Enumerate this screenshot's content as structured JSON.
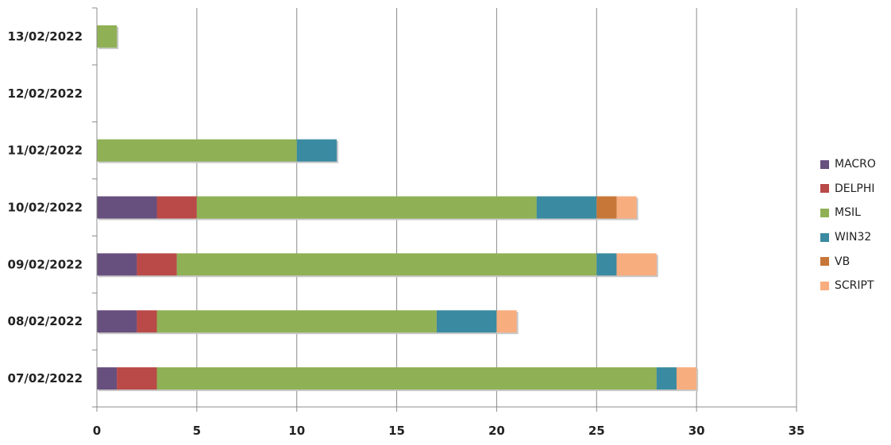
{
  "chart_data": {
    "type": "bar",
    "orientation": "horizontal",
    "stacked": true,
    "categories": [
      "07/02/2022",
      "08/02/2022",
      "09/02/2022",
      "10/02/2022",
      "11/02/2022",
      "12/02/2022",
      "13/02/2022"
    ],
    "series": [
      {
        "name": "MACRO",
        "color": "#674f7e",
        "values": [
          1,
          2,
          2,
          3,
          0,
          0,
          0
        ]
      },
      {
        "name": "DELPHI",
        "color": "#b94a48",
        "values": [
          2,
          1,
          2,
          2,
          0,
          0,
          0
        ]
      },
      {
        "name": "MSIL",
        "color": "#8fb055",
        "values": [
          25,
          14,
          21,
          17,
          10,
          0,
          1
        ]
      },
      {
        "name": "WIN32",
        "color": "#3a8ba1",
        "values": [
          1,
          3,
          1,
          3,
          2,
          0,
          0
        ]
      },
      {
        "name": "VB",
        "color": "#c77738",
        "values": [
          0,
          0,
          0,
          1,
          0,
          0,
          0
        ]
      },
      {
        "name": "SCRIPT",
        "color": "#f8ad7f",
        "values": [
          1,
          1,
          2,
          1,
          0,
          0,
          0
        ]
      }
    ],
    "xlim": [
      0,
      35
    ],
    "xticks": [
      "0",
      "5",
      "10",
      "15",
      "20",
      "25",
      "30",
      "35"
    ],
    "grid": "vertical",
    "legend_position": "right"
  }
}
